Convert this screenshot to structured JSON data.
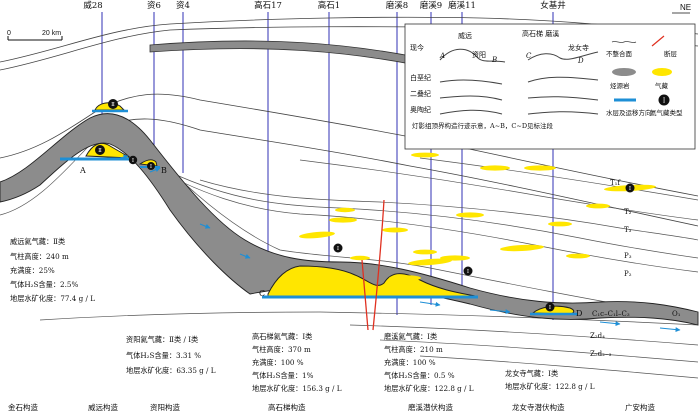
{
  "header": {
    "wells": [
      "威28",
      "资6",
      "资4",
      "高石17",
      "高石1",
      "磨溪8",
      "磨溪9",
      "磨溪11",
      "女基井"
    ],
    "ne_label": "NE"
  },
  "scale": {
    "zero": "0",
    "distance": "20 km"
  },
  "legend": {
    "profile_title_left": "威远",
    "profile_title_right": "高石梯 磨溪",
    "today": "现今",
    "ziyang": "资阳",
    "longnvsi": "龙女寺",
    "letters": [
      "A",
      "B",
      "C",
      "D"
    ],
    "cretaceous": "白垩纪",
    "permian": "二叠纪",
    "ordovician": "奥陶纪",
    "caption": "灯影组顶界构造行迹示意，A~B，C~D见标注段",
    "unconformity": "不整合面",
    "fault": "断层",
    "source_rock": "烃源岩",
    "gas_reservoir": "气藏",
    "water_layer": "水层及运移方向",
    "helium_type": "氦气藏类型",
    "helium_type_symbol": "Ⅰ"
  },
  "strata": [
    "T₁f",
    "T₂",
    "T₃",
    "P₃",
    "P₂",
    "O₁",
    "C₁c–C₁l–C₃",
    "Z₂d₄",
    "Z₂d₂₋₃"
  ],
  "markers": {
    "t1": "Ⅱ",
    "t2": "Ⅱ",
    "c1": "Ⅰ",
    "c2": "Ⅰ",
    "c3": "Ⅰ",
    "c4": "Ⅰ",
    "c5": "Ⅰ"
  },
  "point_labels": {
    "A": "A",
    "B": "B",
    "C": "C",
    "D": "D"
  },
  "info": {
    "weiyuan": [
      "威远氦气藏：Ⅱ类",
      "气柱高度：240 m",
      "充满度：25%",
      "气体H₂S含量：2.5%",
      "地层水矿化度：77.4 g / L"
    ],
    "ziyang": [
      "资阳氦气藏：Ⅱ类 / Ⅰ类",
      "气体H₂S含量：3.31 %",
      "地层水矿化度：63.35 g / L"
    ],
    "gaoshiti": [
      "高石梯氦气藏：Ⅰ类",
      "气柱高度：370 m",
      "充满度：100 %",
      "气体H₂S含量：1%",
      "地层水矿化度：156.3 g / L"
    ],
    "moxi": [
      "磨溪氦气藏：Ⅰ类",
      "气柱高度：210 m",
      "充满度：100 %",
      "气体H₂S含量：0.5 %",
      "地层水矿化度：122.8 g / L"
    ],
    "longnvsi": [
      "龙女寺气藏：Ⅰ类",
      "地层水矿化度：122.8 g / L"
    ]
  },
  "structures": [
    "金石构造",
    "威远构造",
    "资阳构造",
    "高石梯构造",
    "磨溪潜伏构造",
    "龙女寺潜伏构造",
    "广安构造"
  ],
  "colors": {
    "gas": "#ffe600",
    "source": "#8c8c8c",
    "water": "#1e8fd6",
    "well": "#3232b4",
    "fault": "#e03020"
  }
}
